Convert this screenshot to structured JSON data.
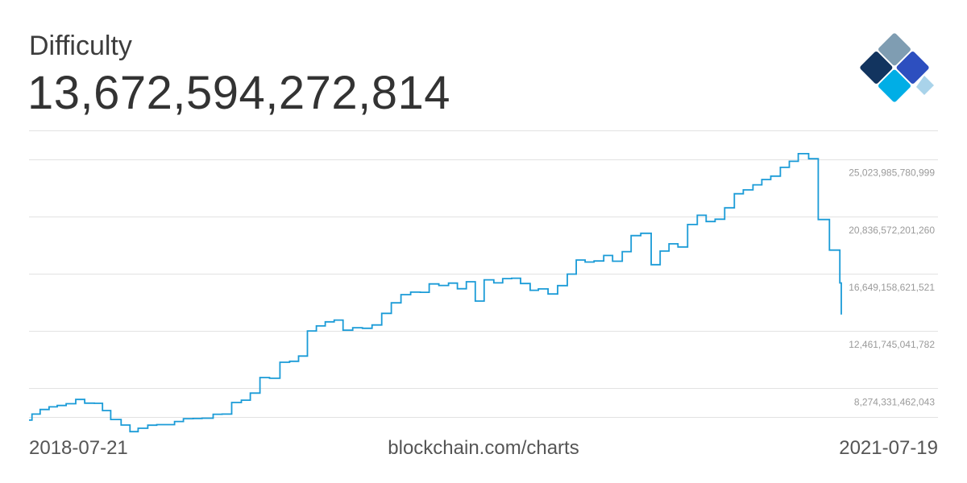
{
  "header": {
    "title": "Difficulty",
    "value": "13,672,594,272,814"
  },
  "footer": {
    "start_date": "2018-07-21",
    "source": "blockchain.com/charts",
    "end_date": "2021-07-19"
  },
  "logo": {
    "name": "blockchain-logo",
    "colors": [
      "#7f9db2",
      "#12345f",
      "#2d4fbf",
      "#00aee6",
      "#a9d3ea"
    ]
  },
  "colors": {
    "line": "#1a9bd7",
    "grid": "#e2e2e2",
    "tick_text": "#9a9a9a"
  },
  "chart_data": {
    "type": "line",
    "title": "Difficulty",
    "xlabel": "",
    "ylabel": "",
    "step": true,
    "grid": true,
    "ylim": [
      6180624722184,
      27117692470377
    ],
    "yticks": [
      8274331462043,
      12461745041782,
      16649158621521,
      20836572201260,
      25023985780999
    ],
    "ytick_labels": [
      "8,274,331,462,043",
      "12,461,745,041,782",
      "16,649,158,621,521",
      "20,836,572,201,260",
      "25,023,985,780,999"
    ],
    "xlim": [
      "2018-07-21",
      "2021-07-19"
    ],
    "series": [
      {
        "x": [
          "2018-07-21",
          "2018-07-25",
          "2018-08-05",
          "2018-08-17",
          "2018-08-28",
          "2018-09-09",
          "2018-09-22",
          "2018-10-04",
          "2018-10-17",
          "2018-10-28",
          "2018-11-08",
          "2018-11-22",
          "2018-12-04",
          "2018-12-15",
          "2018-12-28",
          "2019-01-09",
          "2019-01-21",
          "2019-02-02",
          "2019-02-14",
          "2019-02-27",
          "2019-03-11",
          "2019-03-26",
          "2019-04-07",
          "2019-04-20",
          "2019-05-03",
          "2019-05-15",
          "2019-05-28",
          "2019-06-10",
          "2019-06-24",
          "2019-07-07",
          "2019-07-19",
          "2019-07-31",
          "2019-08-12",
          "2019-08-24",
          "2019-09-05",
          "2019-09-17",
          "2019-09-30",
          "2019-10-13",
          "2019-10-26",
          "2019-11-08",
          "2019-11-21",
          "2019-12-04",
          "2019-12-17",
          "2019-12-30",
          "2020-01-11",
          "2020-01-24",
          "2020-02-06",
          "2020-02-18",
          "2020-03-01",
          "2020-03-13",
          "2020-03-25",
          "2020-04-07",
          "2020-04-19",
          "2020-05-01",
          "2020-05-13",
          "2020-05-26",
          "2020-06-06",
          "2020-06-19",
          "2020-07-02",
          "2020-07-15",
          "2020-07-27",
          "2020-08-08",
          "2020-08-20",
          "2020-09-02",
          "2020-09-14",
          "2020-09-27",
          "2020-10-09",
          "2020-10-22",
          "2020-11-05",
          "2020-11-17",
          "2020-11-29",
          "2020-12-11",
          "2020-12-24",
          "2021-01-06",
          "2021-01-18",
          "2021-01-30",
          "2021-02-12",
          "2021-02-25",
          "2021-03-09",
          "2021-03-22",
          "2021-04-03",
          "2021-04-15",
          "2021-04-28",
          "2021-05-10",
          "2021-05-22",
          "2021-06-05",
          "2021-06-18",
          "2021-07-03",
          "2021-07-17",
          "2021-07-19"
        ],
        "y": [
          5950000000000,
          6390000000000,
          6730000000000,
          6920000000000,
          7020000000000,
          7150000000000,
          7460000000000,
          7190000000000,
          7180000000000,
          6650000000000,
          6000000000000,
          5590000000000,
          5110000000000,
          5360000000000,
          5580000000000,
          5620000000000,
          5620000000000,
          5850000000000,
          6060000000000,
          6070000000000,
          6090000000000,
          6380000000000,
          6390000000000,
          7240000000000,
          7410000000000,
          7930000000000,
          9060000000000,
          9010000000000,
          10180000000000,
          10250000000000,
          10630000000000,
          12470000000000,
          12830000000000,
          13130000000000,
          13260000000000,
          12520000000000,
          12700000000000,
          12660000000000,
          12900000000000,
          13750000000000,
          14520000000000,
          15120000000000,
          15300000000000,
          15290000000000,
          15900000000000,
          15790000000000,
          15960000000000,
          15550000000000,
          16060000000000,
          14650000000000,
          16200000000000,
          15980000000000,
          16290000000000,
          16320000000000,
          15930000000000,
          15440000000000,
          15540000000000,
          15170000000000,
          15780000000000,
          16620000000000,
          17650000000000,
          17500000000000,
          17580000000000,
          17980000000000,
          17560000000000,
          18260000000000,
          19430000000000,
          19600000000000,
          17310000000000,
          18300000000000,
          18830000000000,
          18600000000000,
          20240000000000,
          20920000000000,
          20460000000000,
          20630000000000,
          21460000000000,
          22490000000000,
          22770000000000,
          23140000000000,
          23530000000000,
          23780000000000,
          24420000000000,
          24860000000000,
          25420000000000,
          25050000000000,
          20610000000000,
          18370000000000,
          15970000000000,
          13670000000000
        ]
      }
    ]
  }
}
